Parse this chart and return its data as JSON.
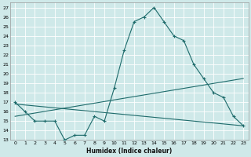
{
  "xlabel": "Humidex (Indice chaleur)",
  "xlim": [
    -0.5,
    23.5
  ],
  "ylim": [
    13,
    27.5
  ],
  "yticks": [
    13,
    14,
    15,
    16,
    17,
    18,
    19,
    20,
    21,
    22,
    23,
    24,
    25,
    26,
    27
  ],
  "xticks": [
    0,
    1,
    2,
    3,
    4,
    5,
    6,
    7,
    8,
    9,
    10,
    11,
    12,
    13,
    14,
    15,
    16,
    17,
    18,
    19,
    20,
    21,
    22,
    23
  ],
  "bg_color": "#cfe9e9",
  "line_color": "#1e6b6b",
  "grid_color": "#ffffff",
  "line1_x": [
    0,
    1,
    2,
    3,
    4,
    5,
    6,
    7,
    8,
    9,
    10,
    11,
    12,
    13,
    14,
    15,
    16,
    17,
    18,
    19,
    20,
    21,
    22,
    23
  ],
  "line1_y": [
    17.0,
    16.0,
    15.0,
    15.0,
    15.0,
    13.0,
    13.5,
    13.5,
    15.5,
    15.0,
    18.5,
    22.5,
    25.5,
    26.0,
    27.0,
    25.5,
    24.0,
    23.5,
    21.0,
    19.5,
    18.0,
    17.5,
    15.5,
    14.5
  ],
  "line2_x": [
    0,
    23
  ],
  "line2_y": [
    15.5,
    19.5
  ],
  "line3_x": [
    0,
    23
  ],
  "line3_y": [
    16.8,
    14.5
  ]
}
